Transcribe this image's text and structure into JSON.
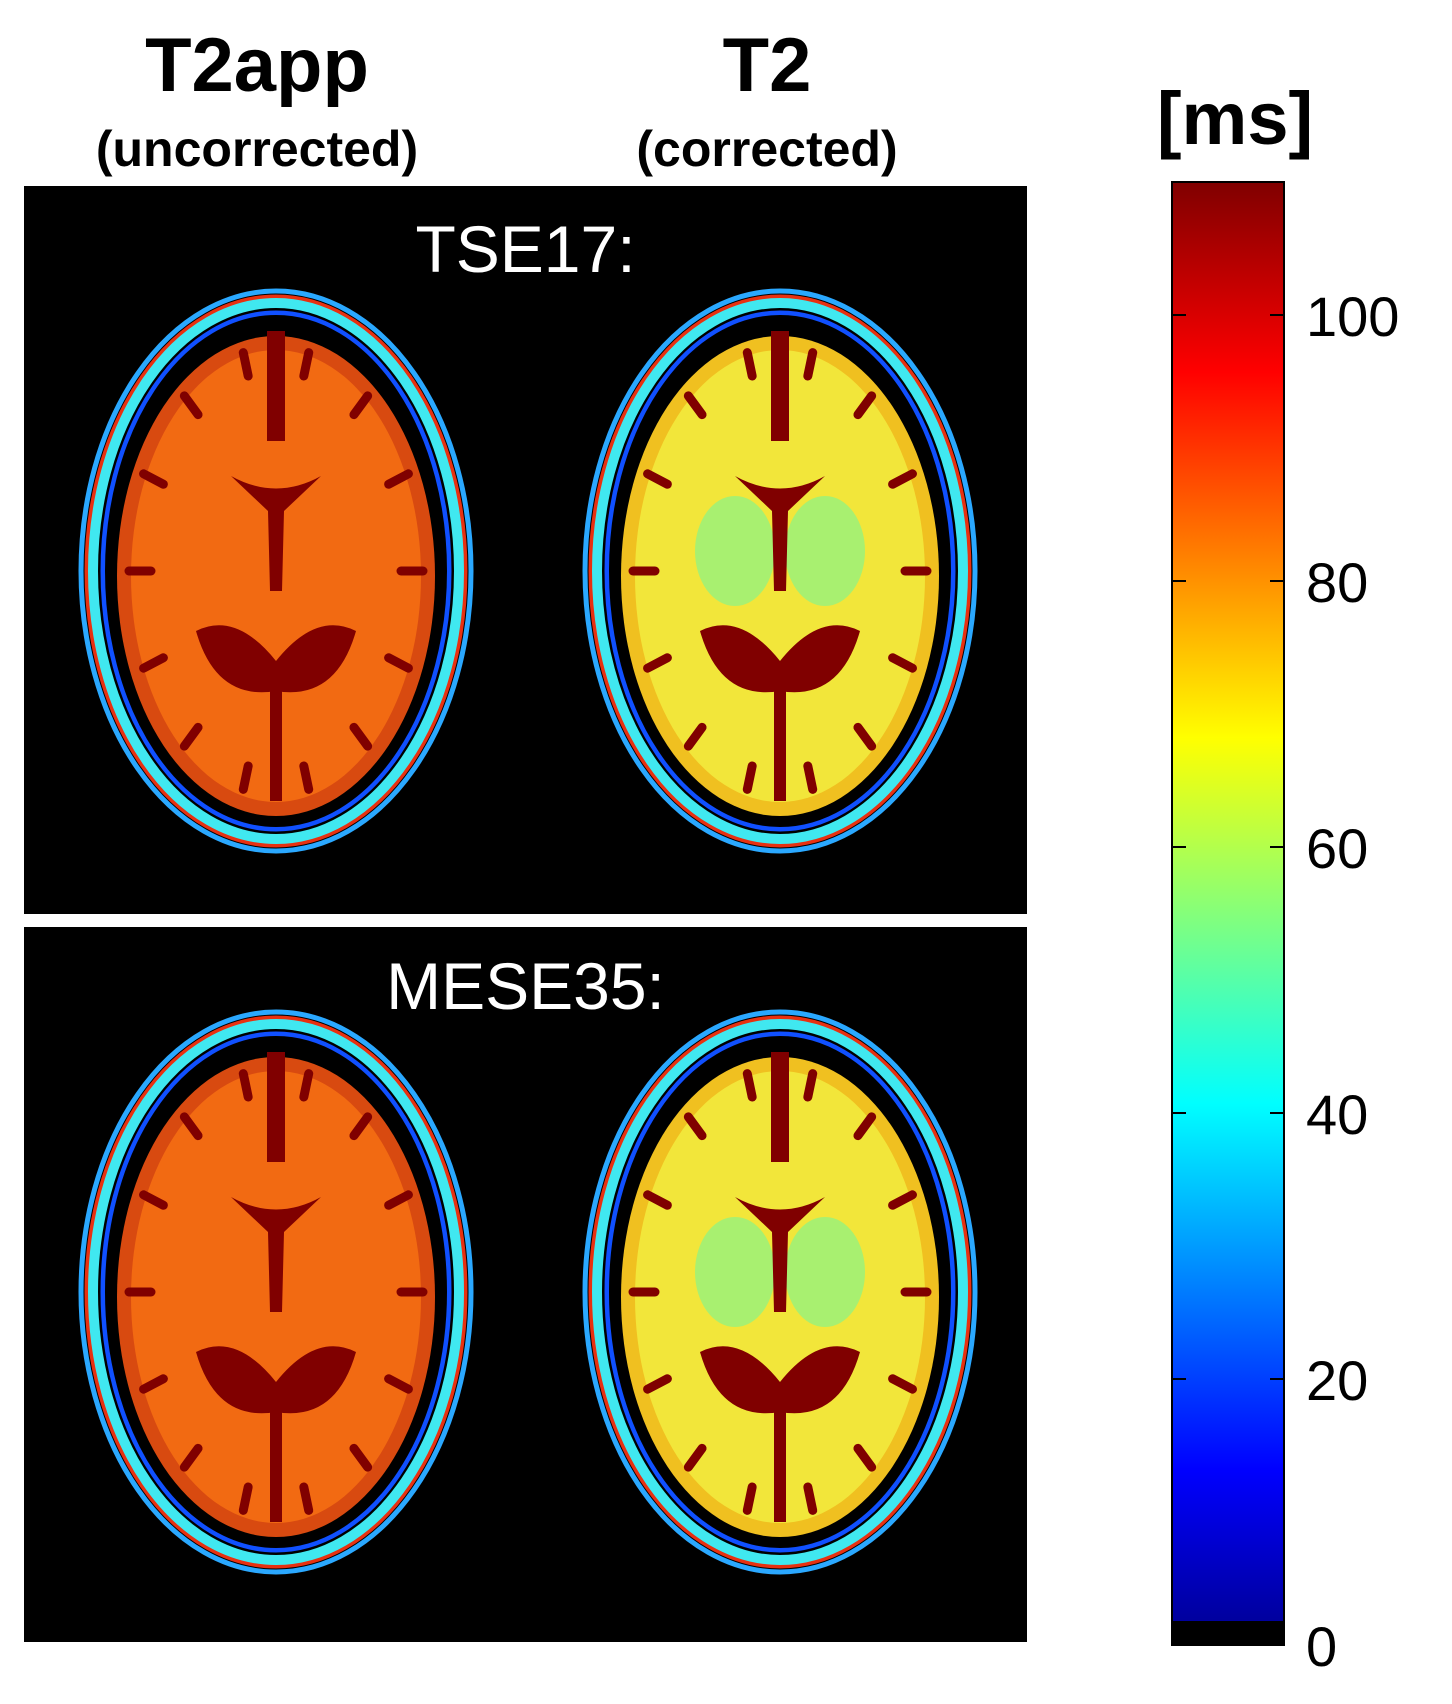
{
  "columns": [
    {
      "title": "T2app",
      "subtitle": "(uncorrected)"
    },
    {
      "title": "T2",
      "subtitle": "(corrected)"
    }
  ],
  "rows": [
    {
      "label": "TSE17:"
    },
    {
      "label": "MESE35:"
    }
  ],
  "colorbar": {
    "unit": "[ms]",
    "range": [
      0,
      110
    ],
    "colormap": "jet",
    "ticks": [
      {
        "value": 0,
        "label": "0"
      },
      {
        "value": 20,
        "label": "20"
      },
      {
        "value": 40,
        "label": "40"
      },
      {
        "value": 60,
        "label": "60"
      },
      {
        "value": 80,
        "label": "80"
      },
      {
        "value": 100,
        "label": "100"
      }
    ]
  },
  "image_colors": {
    "uncorrected_tissue": "#f26a12",
    "corrected_tissue": "#f2e63a",
    "csf": "#800000",
    "background": "#000000"
  }
}
